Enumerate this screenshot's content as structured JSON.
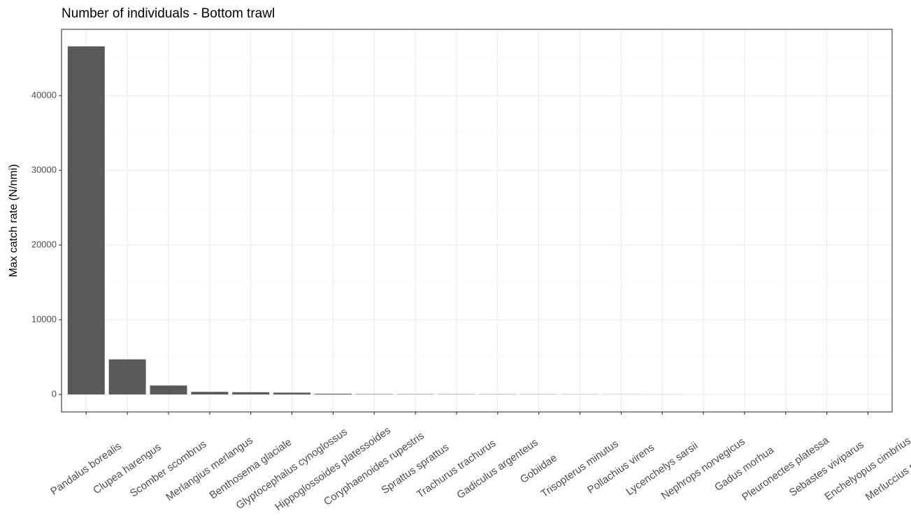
{
  "chart_data": {
    "type": "bar",
    "title": "Number of individuals - Bottom trawl",
    "y_label": "Max catch rate (N/nmi)",
    "categories": [
      "Pandalus borealis",
      "Clupea harengus",
      "Scomber scombrus",
      "Merlangius merlangus",
      "Benthosema glaciale",
      "Glyptocephalus cynoglossus",
      "Hippoglossoides platessoides",
      "Coryphaenoides rupestris",
      "Sprattus sprattus",
      "Trachurus trachurus",
      "Gadiculus argenteus",
      "Gobiidae",
      "Trisopterus minutus",
      "Pollachius virens",
      "Lycenchelys sarsii",
      "Nephrops norvegicus",
      "Gadus morhua",
      "Pleuronectes platessa",
      "Sebastes viviparus",
      "Enchelyopus cimbrius",
      "Merluccius merluccius"
    ],
    "values": [
      46600,
      4700,
      1200,
      350,
      300,
      250,
      100,
      50,
      40,
      35,
      30,
      25,
      20,
      15,
      10,
      0,
      0,
      0,
      0,
      0,
      null
    ],
    "color": "#595959",
    "ylim": [
      -2336,
      48879
    ],
    "yticks": [
      0,
      10000,
      20000,
      30000,
      40000
    ],
    "grid": true
  }
}
